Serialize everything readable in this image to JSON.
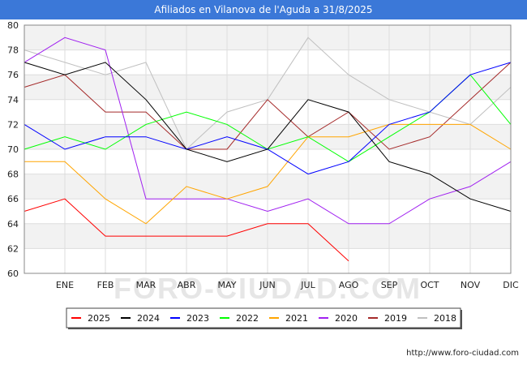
{
  "chart_data": {
    "type": "line",
    "title": "Afiliados en Vilanova de l'Aguda a 31/8/2025",
    "categories": [
      "",
      "ENE",
      "FEB",
      "MAR",
      "ABR",
      "MAY",
      "JUN",
      "JUL",
      "AGO",
      "SEP",
      "OCT",
      "NOV",
      "DIC"
    ],
    "ylim": [
      60,
      80
    ],
    "yticks": [
      60,
      62,
      64,
      66,
      68,
      70,
      72,
      74,
      76,
      78,
      80
    ],
    "grid": true,
    "legend_position": "bottom",
    "series": [
      {
        "name": "2025",
        "color": "#ff0000",
        "values": [
          65,
          66,
          63,
          63,
          63,
          63,
          64,
          64,
          61,
          null,
          null,
          null,
          null
        ]
      },
      {
        "name": "2024",
        "color": "#000000",
        "values": [
          77,
          76,
          77,
          74,
          70,
          69,
          70,
          74,
          73,
          69,
          68,
          66,
          65
        ]
      },
      {
        "name": "2023",
        "color": "#0000ff",
        "values": [
          72,
          70,
          71,
          71,
          70,
          71,
          70,
          68,
          69,
          72,
          73,
          76,
          77
        ]
      },
      {
        "name": "2022",
        "color": "#00ff00",
        "values": [
          70,
          71,
          70,
          72,
          73,
          72,
          70,
          71,
          69,
          71,
          73,
          76,
          72
        ]
      },
      {
        "name": "2021",
        "color": "#ffa500",
        "values": [
          69,
          69,
          66,
          64,
          67,
          66,
          67,
          71,
          71,
          72,
          72,
          72,
          70
        ]
      },
      {
        "name": "2020",
        "color": "#a020f0",
        "values": [
          77,
          79,
          78,
          66,
          66,
          66,
          65,
          66,
          64,
          64,
          66,
          67,
          69
        ]
      },
      {
        "name": "2019",
        "color": "#a52a2a",
        "values": [
          75,
          76,
          73,
          73,
          70,
          70,
          74,
          71,
          73,
          70,
          71,
          74,
          77
        ]
      },
      {
        "name": "2018",
        "color": "#c0c0c0",
        "values": [
          78,
          77,
          76,
          77,
          70,
          73,
          74,
          79,
          76,
          74,
          73,
          72,
          75
        ]
      }
    ]
  },
  "watermark": "FORO-CIUDAD.COM",
  "source": "http://www.foro-ciudad.com"
}
